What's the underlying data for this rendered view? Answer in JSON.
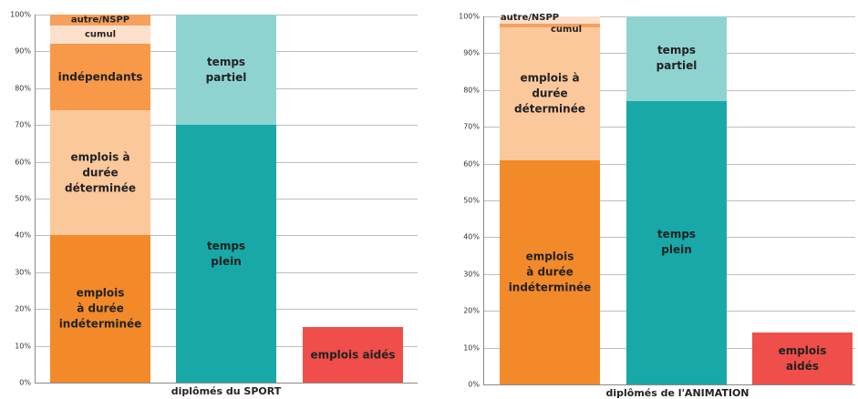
{
  "chart_data": [
    {
      "type": "stacked_bar",
      "x_label": "diplômés du SPORT",
      "ylim": [
        0,
        100
      ],
      "yticks": [
        {
          "value": 0,
          "label": "0%"
        },
        {
          "value": 10,
          "label": "10%"
        },
        {
          "value": 20,
          "label": "20%"
        },
        {
          "value": 30,
          "label": "30%"
        },
        {
          "value": 40,
          "label": "40%"
        },
        {
          "value": 50,
          "label": "50%"
        },
        {
          "value": 60,
          "label": "60%"
        },
        {
          "value": 70,
          "label": "70%"
        },
        {
          "value": 80,
          "label": "80%"
        },
        {
          "value": 90,
          "label": "90%"
        },
        {
          "value": 100,
          "label": "100%"
        }
      ],
      "grid": true,
      "bars": [
        {
          "segments": [
            {
              "name": "emplois\nà durée\nindéterminée",
              "color": "#f28a2a",
              "value": 40
            },
            {
              "name": "emplois à\ndurée\ndéterminée",
              "color": "#fbc89c",
              "value": 34
            },
            {
              "name": "indépendants",
              "color": "#f8994a",
              "value": 18
            },
            {
              "name": "cumul",
              "color": "#fde0cc",
              "value": 5
            },
            {
              "name": "autre/NSPP",
              "color": "#f6a05e",
              "value": 3
            }
          ]
        },
        {
          "segments": [
            {
              "name": "temps\nplein",
              "color": "#18a8a8",
              "value": 70
            },
            {
              "name": "temps\npartiel",
              "color": "#8fd3d1",
              "value": 30
            }
          ]
        },
        {
          "segments": [
            {
              "name": "emplois aidés",
              "color": "#ef4e4a",
              "value": 15
            }
          ]
        }
      ]
    },
    {
      "type": "stacked_bar",
      "x_label": "diplômés de l'ANIMATION",
      "ylim": [
        0,
        100
      ],
      "yticks": [
        {
          "value": 0,
          "label": "0%"
        },
        {
          "value": 10,
          "label": "10%"
        },
        {
          "value": 20,
          "label": "20%"
        },
        {
          "value": 30,
          "label": "30%"
        },
        {
          "value": 40,
          "label": "40%"
        },
        {
          "value": 50,
          "label": "50%"
        },
        {
          "value": 60,
          "label": "60%"
        },
        {
          "value": 70,
          "label": "70%"
        },
        {
          "value": 80,
          "label": "80%"
        },
        {
          "value": 90,
          "label": "90%"
        },
        {
          "value": 100,
          "label": "100%"
        }
      ],
      "grid": true,
      "bars": [
        {
          "segments": [
            {
              "name": "emplois\nà durée\nindéterminée",
              "color": "#f28a2a",
              "value": 61
            },
            {
              "name": "emplois à\ndurée\ndéterminée",
              "color": "#fbc89c",
              "value": 36
            },
            {
              "name": "cumul",
              "color": "#f6a05e",
              "value": 1
            },
            {
              "name": "autre/NSPP",
              "color": "#fde0cc",
              "value": 2
            }
          ]
        },
        {
          "segments": [
            {
              "name": "temps\nplein",
              "color": "#18a8a8",
              "value": 77
            },
            {
              "name": "temps\npartiel",
              "color": "#8fd3d1",
              "value": 23
            }
          ]
        },
        {
          "segments": [
            {
              "name": "emplois\naidés",
              "color": "#ef4e4a",
              "value": 14
            }
          ]
        }
      ]
    }
  ]
}
